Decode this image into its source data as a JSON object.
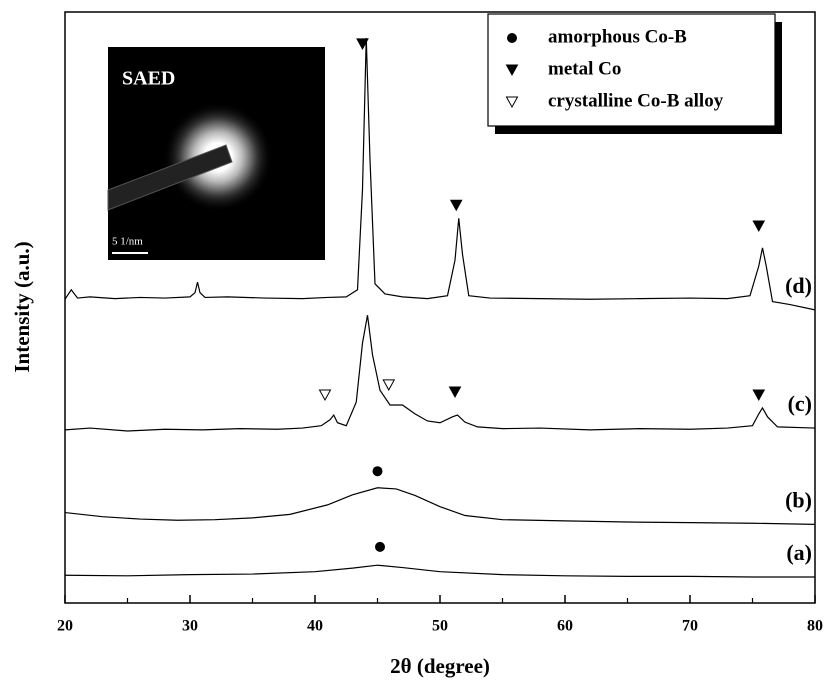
{
  "chart_data": {
    "type": "line",
    "xlabel": "2θ (degree)",
    "ylabel": "Intensity (a.u.)",
    "xlim": [
      20,
      80
    ],
    "xticks": [
      20,
      30,
      40,
      50,
      60,
      70,
      80
    ],
    "xminor": [
      25,
      35,
      45,
      55,
      65,
      75
    ],
    "ylim": [
      0,
      100
    ],
    "series": [
      {
        "name": "(a)",
        "color": "#000000",
        "x": [
          20,
          25,
          30,
          35,
          40,
          43,
          45,
          47,
          50,
          55,
          60,
          65,
          70,
          75,
          80
        ],
        "values": [
          4.7,
          4.6,
          4.8,
          4.9,
          5.3,
          5.9,
          6.4,
          6.0,
          5.3,
          4.8,
          4.6,
          4.5,
          4.5,
          4.4,
          4.4
        ]
      },
      {
        "name": "(b)",
        "color": "#000000",
        "x": [
          20,
          23,
          26,
          29,
          32,
          35,
          38,
          41,
          43,
          45,
          46.5,
          48,
          50,
          52,
          55,
          60,
          65,
          70,
          75,
          80
        ],
        "values": [
          15.3,
          14.6,
          14.2,
          14.0,
          14.1,
          14.4,
          15.0,
          16.6,
          18.3,
          19.5,
          19.3,
          18.2,
          16.3,
          14.8,
          14.1,
          13.9,
          13.7,
          13.6,
          13.5,
          13.3
        ]
      },
      {
        "name": "(c)",
        "color": "#000000",
        "x": [
          20,
          22,
          25,
          28,
          31,
          34,
          37,
          39,
          40.5,
          41.2,
          41.5,
          41.8,
          42.5,
          43.3,
          43.8,
          44.2,
          44.6,
          45.2,
          46,
          47,
          48,
          49,
          50,
          51,
          51.4,
          52,
          53,
          55,
          58,
          62,
          66,
          70,
          73,
          75,
          75.5,
          75.8,
          76.2,
          77,
          80
        ],
        "values": [
          29.3,
          29.6,
          29.1,
          29.4,
          29.3,
          29.5,
          29.4,
          29.6,
          30,
          31,
          31.8,
          30.5,
          30,
          34,
          44,
          48.7,
          42,
          36,
          33.5,
          33.5,
          32,
          30.8,
          30.5,
          31.5,
          31.8,
          30.6,
          29.8,
          29.5,
          29.6,
          29.3,
          29.5,
          29.4,
          29.6,
          30,
          32,
          33,
          31.5,
          29.8,
          29.6
        ]
      },
      {
        "name": "(d)",
        "color": "#000000",
        "x": [
          20,
          20.5,
          21,
          22,
          24,
          26,
          28,
          30,
          30.4,
          30.6,
          30.8,
          31.2,
          33,
          36,
          39,
          41,
          42.5,
          43.4,
          43.8,
          44.1,
          44.4,
          44.8,
          45.6,
          47,
          49,
          50.6,
          51.2,
          51.5,
          51.8,
          52.3,
          54,
          58,
          62,
          66,
          70,
          73,
          74.8,
          75.5,
          75.8,
          76.1,
          76.6,
          78,
          80
        ],
        "values": [
          51.4,
          53,
          51.6,
          51.8,
          51.5,
          51.7,
          51.6,
          51.8,
          52.5,
          54.3,
          52.5,
          51.7,
          51.8,
          51.6,
          51.5,
          51.7,
          51.8,
          53,
          70,
          95.6,
          75,
          54,
          52.3,
          51.8,
          51.5,
          52,
          58,
          65.1,
          59,
          52,
          51.6,
          51.5,
          51.4,
          51.5,
          51.6,
          51.5,
          52,
          57,
          60.1,
          57,
          51,
          50.5,
          49.6
        ]
      }
    ],
    "legend": [
      {
        "label": "amorphous Co-B",
        "marker": "circle"
      },
      {
        "label": "metal Co",
        "marker": "triangle-filled"
      },
      {
        "label": "crystalline Co-B alloy",
        "marker": "triangle-open"
      }
    ],
    "peak_markers": [
      {
        "x": 45.2,
        "y": 9.5,
        "marker": "circle"
      },
      {
        "x": 45,
        "y": 22.3,
        "marker": "circle"
      },
      {
        "x": 40.8,
        "y": 35.2,
        "marker": "triangle-open"
      },
      {
        "x": 45.9,
        "y": 36.9,
        "marker": "triangle-open"
      },
      {
        "x": 51.2,
        "y": 35.7,
        "marker": "triangle-filled"
      },
      {
        "x": 75.5,
        "y": 35.2,
        "marker": "triangle-filled"
      },
      {
        "x": 43.8,
        "y": 94.6,
        "marker": "triangle-filled"
      },
      {
        "x": 51.3,
        "y": 67.3,
        "marker": "triangle-filled"
      },
      {
        "x": 75.5,
        "y": 63.8,
        "marker": "triangle-filled"
      }
    ],
    "inset": {
      "title": "SAED",
      "scale_bar": "5 1/nm"
    }
  }
}
